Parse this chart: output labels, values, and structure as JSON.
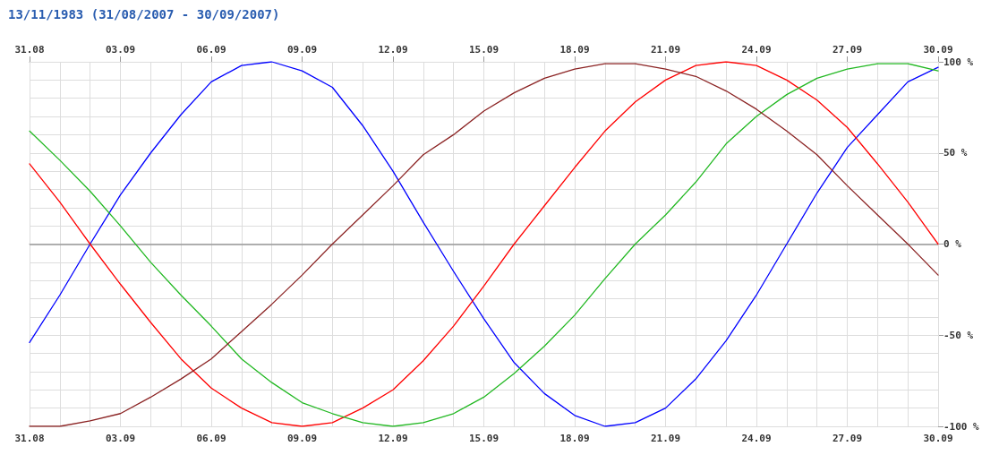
{
  "chart_data": {
    "type": "line",
    "title": "13/11/1983 (31/08/2007 - 30/09/2007)",
    "x": [
      "2007-08-31",
      "2007-09-01",
      "2007-09-02",
      "2007-09-03",
      "2007-09-04",
      "2007-09-05",
      "2007-09-06",
      "2007-09-07",
      "2007-09-08",
      "2007-09-09",
      "2007-09-10",
      "2007-09-11",
      "2007-09-12",
      "2007-09-13",
      "2007-09-14",
      "2007-09-15",
      "2007-09-16",
      "2007-09-17",
      "2007-09-18",
      "2007-09-19",
      "2007-09-20",
      "2007-09-21",
      "2007-09-22",
      "2007-09-23",
      "2007-09-24",
      "2007-09-25",
      "2007-09-26",
      "2007-09-27",
      "2007-09-28",
      "2007-09-29",
      "2007-09-30"
    ],
    "series": [
      {
        "color": "#0000ff",
        "values": [
          -54,
          -28,
          0,
          27,
          50,
          71,
          89,
          98,
          100,
          95,
          86,
          65,
          40,
          12,
          -15,
          -41,
          -65,
          -82,
          -94,
          -100,
          -98,
          -90,
          -74,
          -53,
          -28,
          0,
          28,
          53,
          71,
          89,
          97
        ]
      },
      {
        "color": "#ff0000",
        "values": [
          44,
          23,
          0,
          -22,
          -43,
          -63,
          -79,
          -90,
          -98,
          -100,
          -98,
          -90,
          -80,
          -64,
          -45,
          -23,
          0,
          21,
          42,
          62,
          78,
          90,
          98,
          100,
          98,
          90,
          79,
          64,
          44,
          23,
          0
        ]
      },
      {
        "color": "#22b822",
        "values": [
          62,
          46,
          29,
          10,
          -10,
          -28,
          -45,
          -63,
          -76,
          -87,
          -93,
          -98,
          -100,
          -98,
          -93,
          -84,
          -71,
          -56,
          -39,
          -19,
          0,
          16,
          34,
          55,
          70,
          82,
          91,
          96,
          99,
          99,
          95
        ]
      },
      {
        "color": "#8b2323",
        "values": [
          -100,
          -100,
          -97,
          -93,
          -84,
          -74,
          -63,
          -48,
          -33,
          -17,
          0,
          16,
          32,
          49,
          60,
          73,
          83,
          91,
          96,
          99,
          99,
          96,
          92,
          84,
          74,
          62,
          49,
          32,
          16,
          0,
          -17
        ]
      }
    ],
    "xlim": [
      "2007-08-31",
      "2007-09-30"
    ],
    "xticks": [
      {
        "value": "2007-08-31",
        "label": "31.08"
      },
      {
        "value": "2007-09-01",
        "label": null
      },
      {
        "value": "2007-09-02",
        "label": null
      },
      {
        "value": "2007-09-03",
        "label": "03.09"
      },
      {
        "value": "2007-09-04",
        "label": null
      },
      {
        "value": "2007-09-05",
        "label": null
      },
      {
        "value": "2007-09-06",
        "label": "06.09"
      },
      {
        "value": "2007-09-07",
        "label": null
      },
      {
        "value": "2007-09-08",
        "label": null
      },
      {
        "value": "2007-09-09",
        "label": "09.09"
      },
      {
        "value": "2007-09-10",
        "label": null
      },
      {
        "value": "2007-09-11",
        "label": null
      },
      {
        "value": "2007-09-12",
        "label": "12.09"
      },
      {
        "value": "2007-09-13",
        "label": null
      },
      {
        "value": "2007-09-14",
        "label": null
      },
      {
        "value": "2007-09-15",
        "label": "15.09"
      },
      {
        "value": "2007-09-16",
        "label": null
      },
      {
        "value": "2007-09-17",
        "label": null
      },
      {
        "value": "2007-09-18",
        "label": "18.09"
      },
      {
        "value": "2007-09-19",
        "label": null
      },
      {
        "value": "2007-09-20",
        "label": null
      },
      {
        "value": "2007-09-21",
        "label": "21.09"
      },
      {
        "value": "2007-09-22",
        "label": null
      },
      {
        "value": "2007-09-23",
        "label": null
      },
      {
        "value": "2007-09-24",
        "label": "24.09"
      },
      {
        "value": "2007-09-25",
        "label": null
      },
      {
        "value": "2007-09-26",
        "label": null
      },
      {
        "value": "2007-09-27",
        "label": "27.09"
      },
      {
        "value": "2007-09-28",
        "label": null
      },
      {
        "value": "2007-09-29",
        "label": null
      },
      {
        "value": "2007-09-30",
        "label": "30.09"
      }
    ],
    "x2lim": [
      "2007-08-31",
      "2007-09-30"
    ],
    "x2ticks": [
      {
        "value": "2007-08-31",
        "label": "31.08"
      },
      {
        "value": "2007-09-03",
        "label": "03.09"
      },
      {
        "value": "2007-09-06",
        "label": "06.09"
      },
      {
        "value": "2007-09-09",
        "label": "09.09"
      },
      {
        "value": "2007-09-12",
        "label": "12.09"
      },
      {
        "value": "2007-09-15",
        "label": "15.09"
      },
      {
        "value": "2007-09-18",
        "label": "18.09"
      },
      {
        "value": "2007-09-21",
        "label": "21.09"
      },
      {
        "value": "2007-09-24",
        "label": "24.09"
      },
      {
        "value": "2007-09-27",
        "label": "27.09"
      },
      {
        "value": "2007-09-30",
        "label": "30.09"
      }
    ],
    "ylim": [
      -100,
      100
    ],
    "yticks": [
      {
        "value": -100,
        "label": "-100 %"
      },
      {
        "value": -90,
        "label": null
      },
      {
        "value": -80,
        "label": null
      },
      {
        "value": -70,
        "label": null
      },
      {
        "value": -60,
        "label": null
      },
      {
        "value": -50,
        "label": "-50 %"
      },
      {
        "value": -40,
        "label": null
      },
      {
        "value": -30,
        "label": null
      },
      {
        "value": -20,
        "label": null
      },
      {
        "value": -10,
        "label": null
      },
      {
        "value": 0,
        "label": "0 %"
      },
      {
        "value": 10,
        "label": null
      },
      {
        "value": 20,
        "label": null
      },
      {
        "value": 30,
        "label": null
      },
      {
        "value": 40,
        "label": null
      },
      {
        "value": 50,
        "label": "50 %"
      },
      {
        "value": 60,
        "label": null
      },
      {
        "value": 70,
        "label": null
      },
      {
        "value": 80,
        "label": null
      },
      {
        "value": 90,
        "label": null
      },
      {
        "value": 100,
        "label": "100 %"
      }
    ],
    "ref_lines": [
      {
        "axis": "y",
        "value": 0,
        "color": "#999999"
      }
    ],
    "grid": true,
    "marker": "none",
    "line_style": "solid"
  }
}
